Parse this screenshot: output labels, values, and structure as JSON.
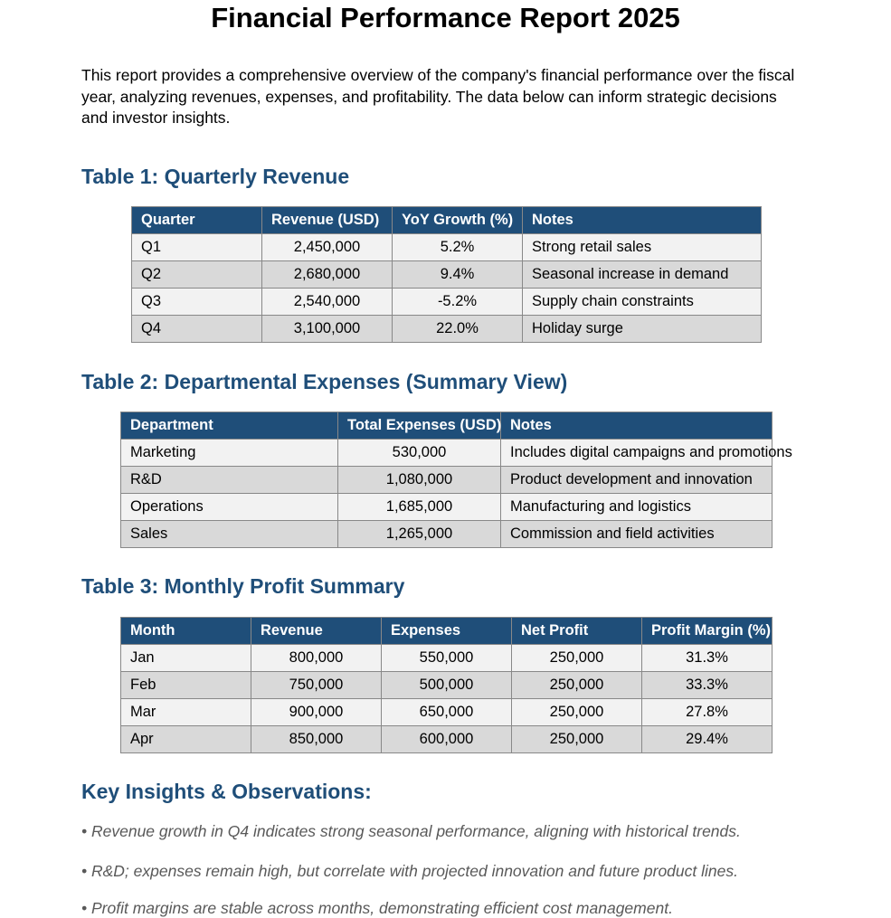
{
  "title": "Financial Performance Report 2025",
  "intro": "This report provides a comprehensive overview of the company's financial performance over the fiscal year, analyzing revenues, expenses, and profitability. The data below can inform strategic decisions and investor insights.",
  "table1": {
    "heading": "Table 1: Quarterly Revenue",
    "headers": [
      "Quarter",
      "Revenue (USD)",
      "YoY Growth (%)",
      "Notes"
    ],
    "rows": [
      [
        "Q1",
        "2,450,000",
        "5.2%",
        "Strong retail sales"
      ],
      [
        "Q2",
        "2,680,000",
        "9.4%",
        "Seasonal increase in demand"
      ],
      [
        "Q3",
        "2,540,000",
        "-5.2%",
        "Supply chain constraints"
      ],
      [
        "Q4",
        "3,100,000",
        "22.0%",
        "Holiday surge"
      ]
    ]
  },
  "table2": {
    "heading": "Table 2: Departmental Expenses (Summary View)",
    "headers": [
      "Department",
      "Total Expenses (USD)",
      "Notes"
    ],
    "rows": [
      [
        "Marketing",
        "530,000",
        "Includes digital campaigns and promotions"
      ],
      [
        "R&D",
        "1,080,000",
        "Product development and innovation"
      ],
      [
        "Operations",
        "1,685,000",
        "Manufacturing and logistics"
      ],
      [
        "Sales",
        "1,265,000",
        "Commission and field activities"
      ]
    ]
  },
  "table3": {
    "heading": "Table 3: Monthly Profit Summary",
    "headers": [
      "Month",
      "Revenue",
      "Expenses",
      "Net Profit",
      "Profit Margin (%)"
    ],
    "rows": [
      [
        "Jan",
        "800,000",
        "550,000",
        "250,000",
        "31.3%"
      ],
      [
        "Feb",
        "750,000",
        "500,000",
        "250,000",
        "33.3%"
      ],
      [
        "Mar",
        "900,000",
        "650,000",
        "250,000",
        "27.8%"
      ],
      [
        "Apr",
        "850,000",
        "600,000",
        "250,000",
        "29.4%"
      ]
    ]
  },
  "insights": {
    "heading": "Key Insights & Observations:",
    "items": [
      "• Revenue growth in Q4 indicates strong seasonal performance, aligning with historical trends.",
      "• R&D; expenses remain high, but correlate with projected innovation and future product lines.",
      "• Profit margins are stable across months, demonstrating efficient cost management."
    ]
  },
  "colors": {
    "heading": "#1f4e79",
    "header_bg": "#1f4e79",
    "row_light": "#f2f2f2",
    "row_dark": "#d9d9d9"
  }
}
